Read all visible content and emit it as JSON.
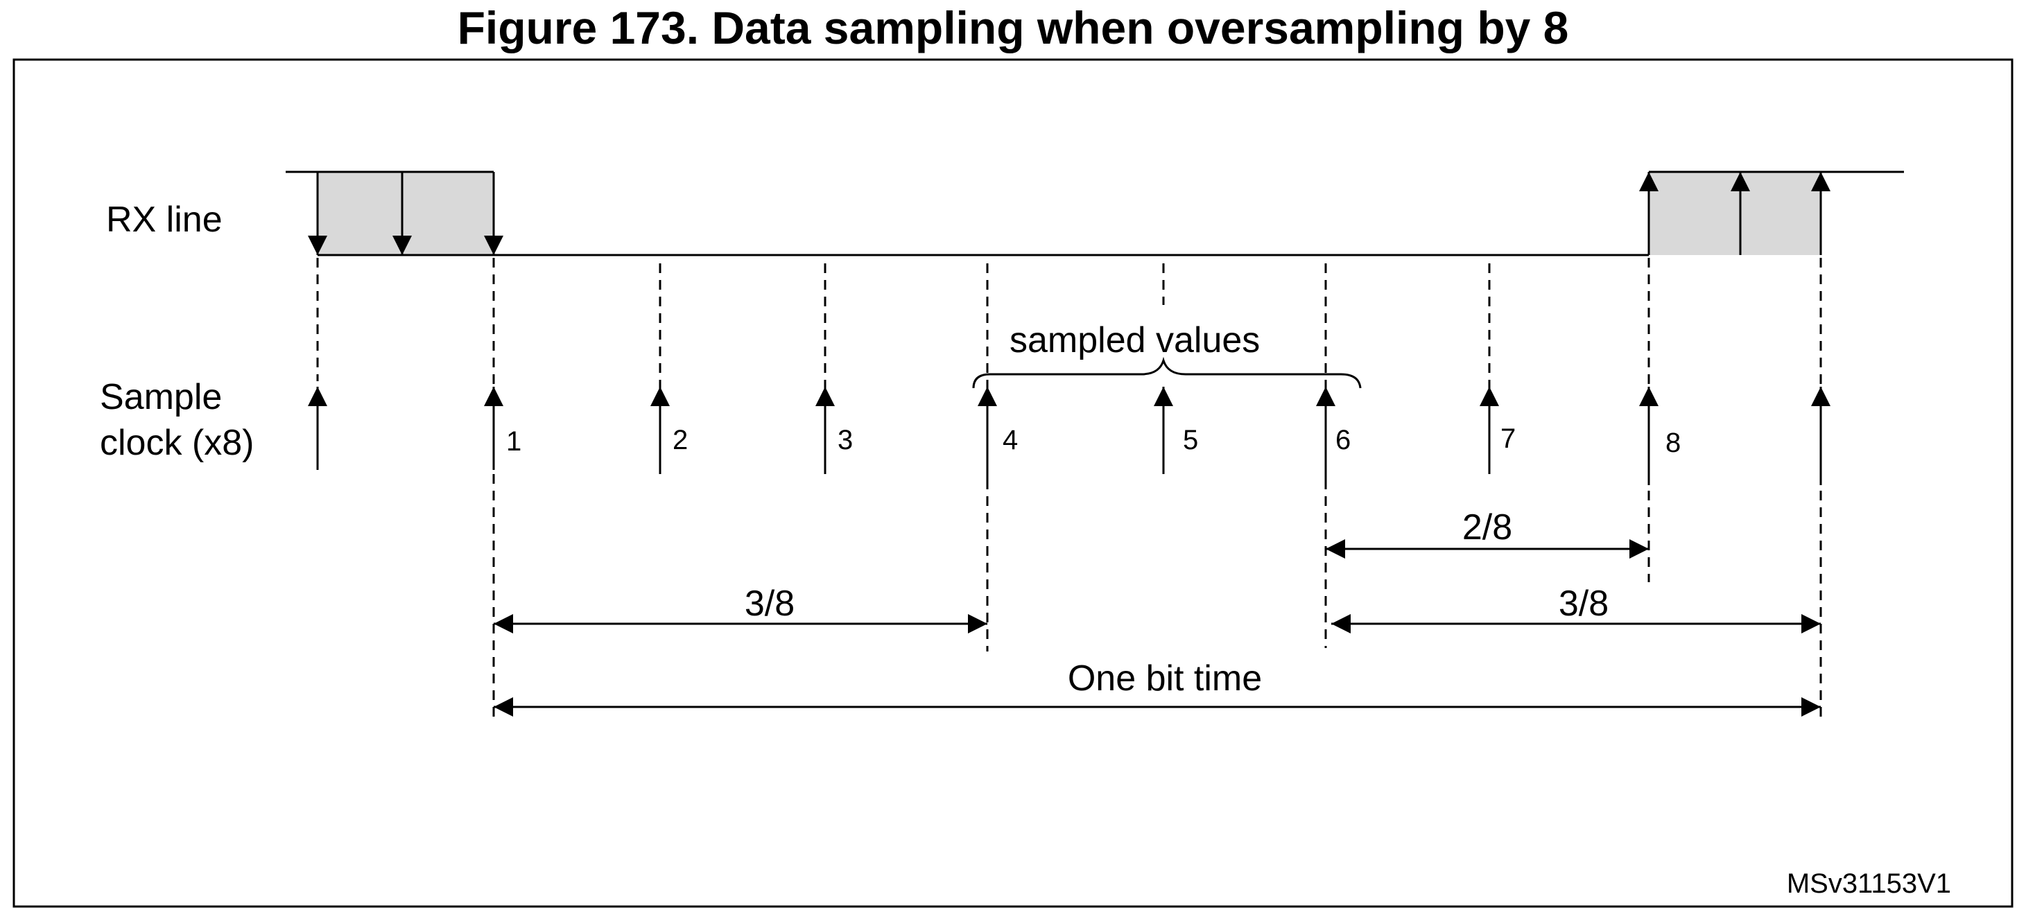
{
  "title": "Figure 173. Data sampling when oversampling by 8",
  "rx_line_label": "RX line",
  "sample_clock_label_line1": "Sample",
  "sample_clock_label_line2": "clock (x8)",
  "sample_numbers": [
    "1",
    "2",
    "3",
    "4",
    "5",
    "6",
    "7",
    "8"
  ],
  "sampled_values_label": "sampled values",
  "dim_2_8": "2/8",
  "dim_3_8_left": "3/8",
  "dim_3_8_right": "3/8",
  "one_bit_time": "One bit time",
  "figure_id": "MSv31153V1"
}
